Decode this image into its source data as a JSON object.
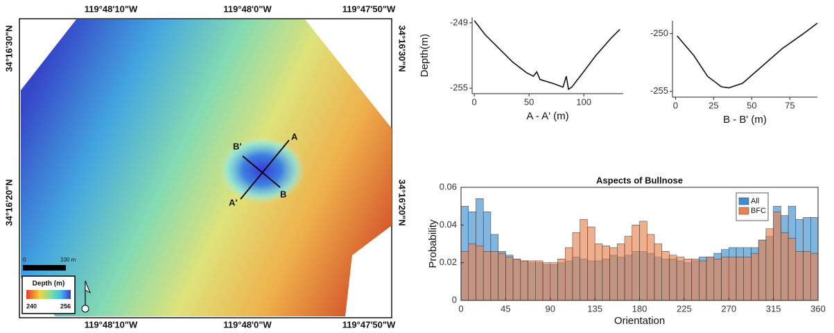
{
  "map": {
    "lon_labels": [
      "119°48'10\"W",
      "119°48'0\"W",
      "119°47'50\"W"
    ],
    "lat_labels": [
      "34°16'30\"N",
      "34°16'20\"N"
    ],
    "scale_labels": [
      "0",
      "100 m"
    ],
    "legend_title": "Depth (m)",
    "legend_min": "240",
    "legend_max": "256",
    "section_labels": [
      "A",
      "A'",
      "B",
      "B'"
    ]
  },
  "chart_data": [
    {
      "type": "line",
      "ylabel": "Depth(m)",
      "xlabel": "A - A' (m)",
      "color": "#111111",
      "x": [
        0,
        10,
        23,
        35,
        48,
        54,
        57,
        60,
        73,
        81,
        84,
        86,
        89,
        99,
        111,
        125,
        133
      ],
      "values": [
        -248.8,
        -250.1,
        -251.4,
        -252.6,
        -253.6,
        -253.9,
        -253.5,
        -254.2,
        -254.6,
        -254.9,
        -253.9,
        -255.1,
        -254.9,
        -253.6,
        -252.0,
        -250.4,
        -249.6
      ],
      "xlim": [
        -2,
        136
      ],
      "ylim": [
        -255.5,
        -248.5
      ],
      "xticks": [
        0,
        50,
        100
      ],
      "yticks": [
        -249,
        -255
      ]
    },
    {
      "type": "line",
      "xlabel": "B - B' (m)",
      "color": "#111111",
      "x": [
        1,
        12,
        21,
        30,
        35,
        44,
        57,
        70,
        84,
        93
      ],
      "values": [
        -250.2,
        -251.9,
        -253.7,
        -254.6,
        -254.7,
        -254.3,
        -252.8,
        -251.3,
        -250.0,
        -249.1
      ],
      "xlim": [
        -2,
        93
      ],
      "ylim": [
        -255.5,
        -248.9
      ],
      "xticks": [
        0,
        25,
        50,
        75
      ],
      "yticks": [
        -250,
        -255
      ]
    },
    {
      "type": "histogram",
      "title": "Aspects of Bullnose",
      "xlabel": "Orientation",
      "ylabel": "Probability",
      "legend": "upper right",
      "bins": [
        0,
        7.5,
        15,
        22.5,
        30,
        37.5,
        45,
        52.5,
        60,
        67.5,
        75,
        82.5,
        90,
        97.5,
        105,
        112.5,
        120,
        127.5,
        135,
        142.5,
        150,
        157.5,
        165,
        172.5,
        180,
        187.5,
        195,
        202.5,
        210,
        217.5,
        225,
        232.5,
        240,
        247.5,
        255,
        262.5,
        270,
        277.5,
        285,
        292.5,
        300,
        307.5,
        315,
        322.5,
        330,
        337.5,
        345,
        352.5,
        360
      ],
      "series": [
        {
          "name": "All",
          "color": "#3d8fd1",
          "values": [
            0.05,
            0.047,
            0.054,
            0.047,
            0.035,
            0.026,
            0.024,
            0.022,
            0.021,
            0.02,
            0.02,
            0.019,
            0.019,
            0.02,
            0.021,
            0.023,
            0.022,
            0.021,
            0.021,
            0.022,
            0.024,
            0.023,
            0.024,
            0.026,
            0.026,
            0.025,
            0.023,
            0.022,
            0.022,
            0.021,
            0.02,
            0.021,
            0.023,
            0.023,
            0.025,
            0.027,
            0.028,
            0.028,
            0.028,
            0.028,
            0.032,
            0.034,
            0.05,
            0.045,
            0.05,
            0.043,
            0.044,
            0.044
          ]
        },
        {
          "name": "BFC",
          "color": "#e8834f",
          "values": [
            0.026,
            0.03,
            0.029,
            0.026,
            0.026,
            0.025,
            0.023,
            0.022,
            0.021,
            0.021,
            0.021,
            0.02,
            0.02,
            0.022,
            0.028,
            0.036,
            0.043,
            0.039,
            0.03,
            0.029,
            0.028,
            0.03,
            0.034,
            0.04,
            0.042,
            0.035,
            0.03,
            0.026,
            0.024,
            0.023,
            0.022,
            0.022,
            0.021,
            0.023,
            0.022,
            0.023,
            0.023,
            0.023,
            0.023,
            0.025,
            0.032,
            0.038,
            0.047,
            0.036,
            0.033,
            0.026,
            0.026,
            0.025
          ]
        }
      ],
      "xlim": [
        0,
        360
      ],
      "ylim": [
        0,
        0.06
      ],
      "xticks": [
        0,
        45,
        90,
        135,
        180,
        225,
        270,
        315,
        360
      ],
      "yticks": [
        0,
        0.02,
        0.04,
        0.06
      ]
    }
  ]
}
